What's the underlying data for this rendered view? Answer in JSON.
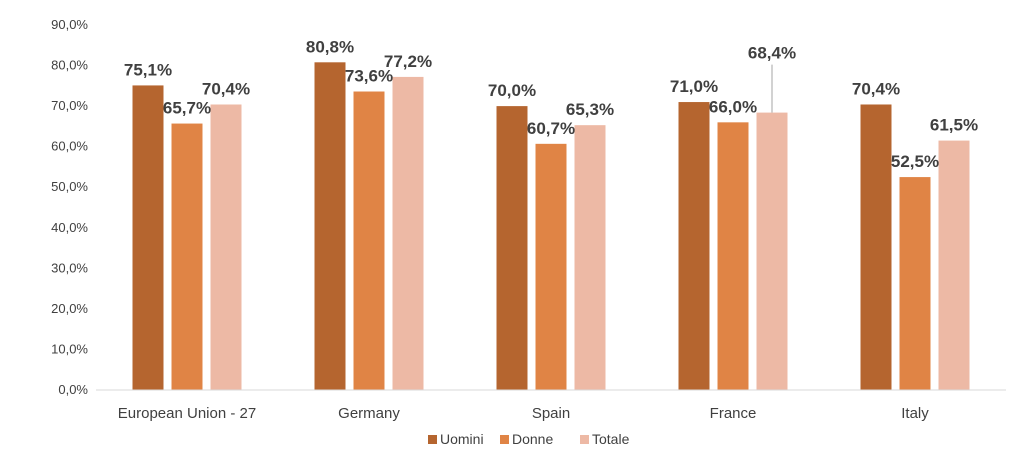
{
  "chart_data": {
    "type": "bar",
    "title": "",
    "xlabel": "",
    "ylabel": "",
    "ylim": [
      0,
      90
    ],
    "yticks": [
      "0,0%",
      "10,0%",
      "20,0%",
      "30,0%",
      "40,0%",
      "50,0%",
      "60,0%",
      "70,0%",
      "80,0%",
      "90,0%"
    ],
    "grid": false,
    "legend_position": "bottom",
    "categories": [
      "European Union - 27",
      "Germany",
      "Spain",
      "France",
      "Italy"
    ],
    "series": [
      {
        "name": "Uomini",
        "color": "#B5652F",
        "values": [
          75.1,
          80.8,
          70.0,
          71.0,
          70.4
        ],
        "labels": [
          "75,1%",
          "80,8%",
          "70,0%",
          "71,0%",
          "70,4%"
        ]
      },
      {
        "name": "Donne",
        "color": "#E08445",
        "values": [
          65.7,
          73.6,
          60.7,
          66.0,
          52.5
        ],
        "labels": [
          "65,7%",
          "73,6%",
          "60,7%",
          "66,0%",
          "52,5%"
        ]
      },
      {
        "name": "Totale",
        "color": "#EDB9A5",
        "values": [
          70.4,
          77.2,
          65.3,
          68.4,
          61.5
        ],
        "labels": [
          "70,4%",
          "77,2%",
          "65,3%",
          "68,4%",
          "61,5%"
        ]
      }
    ]
  }
}
